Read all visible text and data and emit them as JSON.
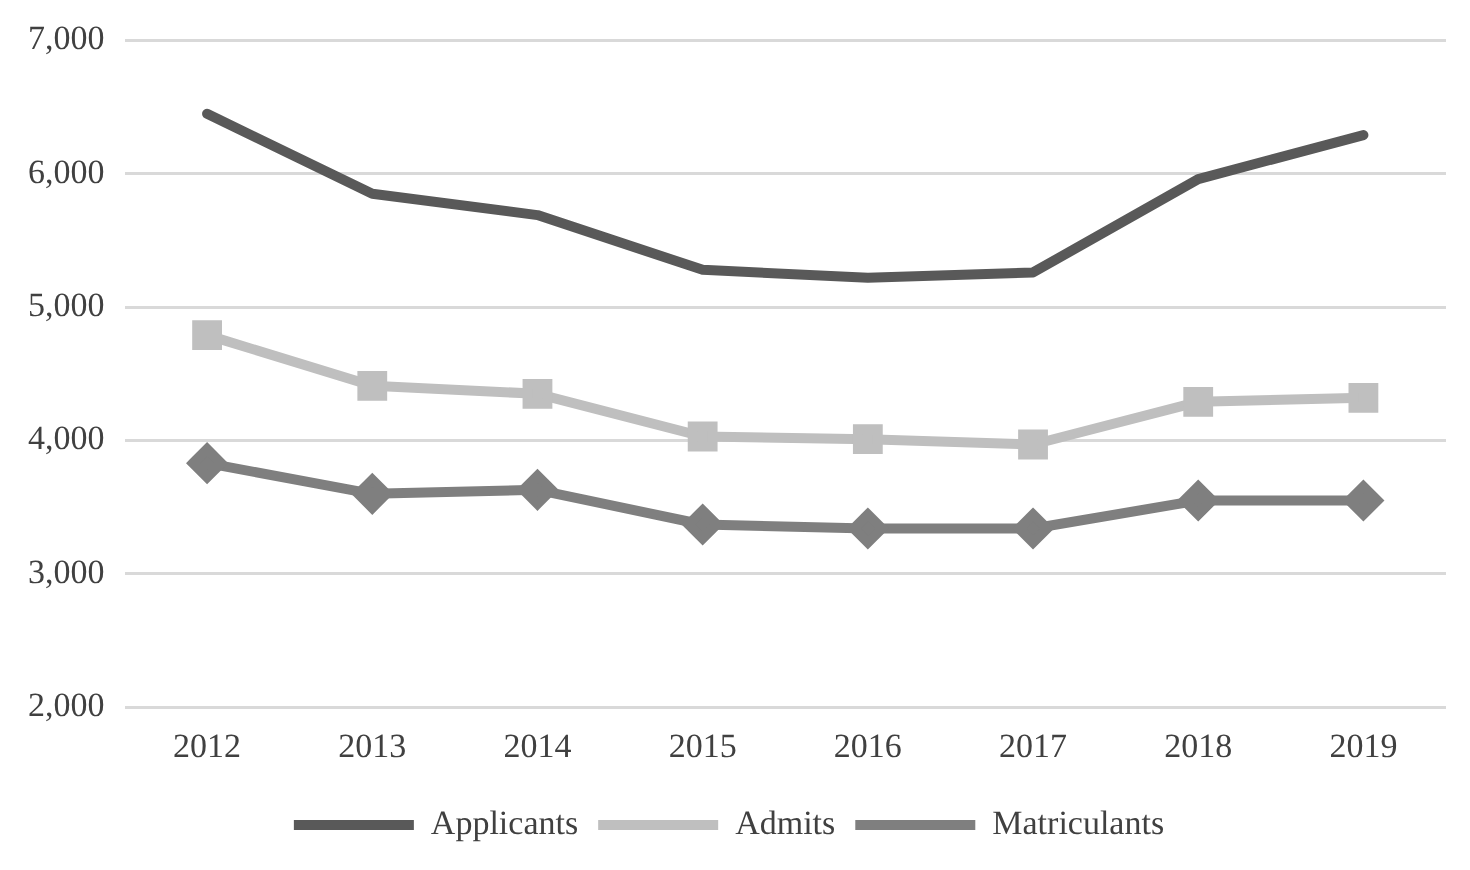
{
  "chart_data": {
    "type": "line",
    "categories": [
      "2012",
      "2013",
      "2014",
      "2015",
      "2016",
      "2017",
      "2018",
      "2019"
    ],
    "series": [
      {
        "name": "Applicants",
        "color": "#595959",
        "marker": "none",
        "values": [
          6450,
          5850,
          5690,
          5280,
          5220,
          5260,
          5960,
          6290
        ]
      },
      {
        "name": "Admits",
        "color": "#bfbfbf",
        "marker": "square",
        "values": [
          4790,
          4410,
          4350,
          4030,
          4010,
          3970,
          4290,
          4320
        ]
      },
      {
        "name": "Matriculants",
        "color": "#7f7f7f",
        "marker": "diamond",
        "values": [
          3830,
          3600,
          3630,
          3370,
          3340,
          3340,
          3550,
          3550
        ]
      }
    ],
    "ylim": [
      2000,
      7000
    ],
    "yticks": [
      {
        "value": 2000,
        "label": "2,000"
      },
      {
        "value": 3000,
        "label": "3,000"
      },
      {
        "value": 4000,
        "label": "4,000"
      },
      {
        "value": 5000,
        "label": "5,000"
      },
      {
        "value": 6000,
        "label": "6,000"
      },
      {
        "value": 7000,
        "label": "7,000"
      }
    ],
    "grid": "y",
    "legend": "bottom"
  }
}
